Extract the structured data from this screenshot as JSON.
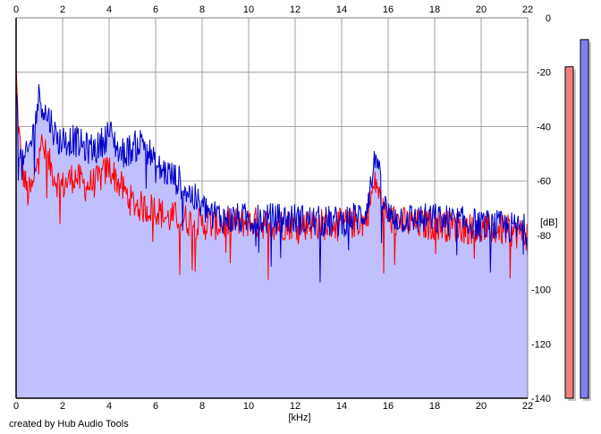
{
  "chart_data": {
    "type": "area",
    "xlabel": "[kHz]",
    "ylabel": "[dB]",
    "credit": "created by Hub Audio Tools",
    "xlim": [
      0,
      22
    ],
    "ylim": [
      -140,
      0
    ],
    "x_ticks": [
      "0",
      "2",
      "4",
      "6",
      "8",
      "10",
      "12",
      "14",
      "16",
      "18",
      "20",
      "22"
    ],
    "y_ticks": [
      "0",
      "-20",
      "-40",
      "-60",
      "-80",
      "-100",
      "-120",
      "-140"
    ],
    "grid": true,
    "fill_color": "#c0c0ff",
    "series": [
      {
        "color": "#ff0000",
        "x": [
          0,
          0.1,
          0.25,
          0.5,
          0.75,
          1.0,
          1.25,
          1.5,
          1.75,
          2.0,
          2.5,
          3.0,
          3.5,
          4.0,
          4.5,
          5.0,
          5.5,
          6.0,
          6.5,
          7.0,
          7.5,
          8.0,
          9.0,
          10.0,
          11.0,
          12.0,
          13.0,
          14.0,
          15.0,
          15.3,
          15.5,
          15.7,
          16.0,
          17.0,
          18.0,
          19.0,
          20.0,
          21.0,
          22.0
        ],
        "y": [
          -20,
          -40,
          -55,
          -65,
          -62,
          -45,
          -50,
          -55,
          -60,
          -62,
          -58,
          -62,
          -60,
          -55,
          -62,
          -68,
          -70,
          -70,
          -74,
          -73,
          -75,
          -76,
          -76,
          -75,
          -76,
          -76,
          -76,
          -76,
          -75,
          -65,
          -60,
          -70,
          -74,
          -76,
          -76,
          -77,
          -78,
          -78,
          -80
        ]
      },
      {
        "color": "#0000c8",
        "x": [
          0,
          0.1,
          0.25,
          0.5,
          0.75,
          1.0,
          1.25,
          1.5,
          1.75,
          2.0,
          2.5,
          3.0,
          3.5,
          4.0,
          4.5,
          5.0,
          5.5,
          6.0,
          6.5,
          7.0,
          7.5,
          8.0,
          9.0,
          10.0,
          11.0,
          12.0,
          13.0,
          14.0,
          15.0,
          15.3,
          15.5,
          15.7,
          16.0,
          17.0,
          18.0,
          19.0,
          20.0,
          21.0,
          22.0
        ],
        "y": [
          -25,
          -45,
          -55,
          -50,
          -42,
          -28,
          -35,
          -38,
          -45,
          -45,
          -45,
          -48,
          -48,
          -42,
          -50,
          -48,
          -45,
          -55,
          -57,
          -60,
          -65,
          -70,
          -74,
          -74,
          -74,
          -74,
          -75,
          -75,
          -72,
          -60,
          -48,
          -65,
          -73,
          -74,
          -74,
          -75,
          -76,
          -77,
          -78
        ]
      }
    ],
    "level_meters": [
      {
        "color": "#f08080",
        "level_db": -18
      },
      {
        "color": "#8080f0",
        "level_db": -8
      }
    ]
  }
}
